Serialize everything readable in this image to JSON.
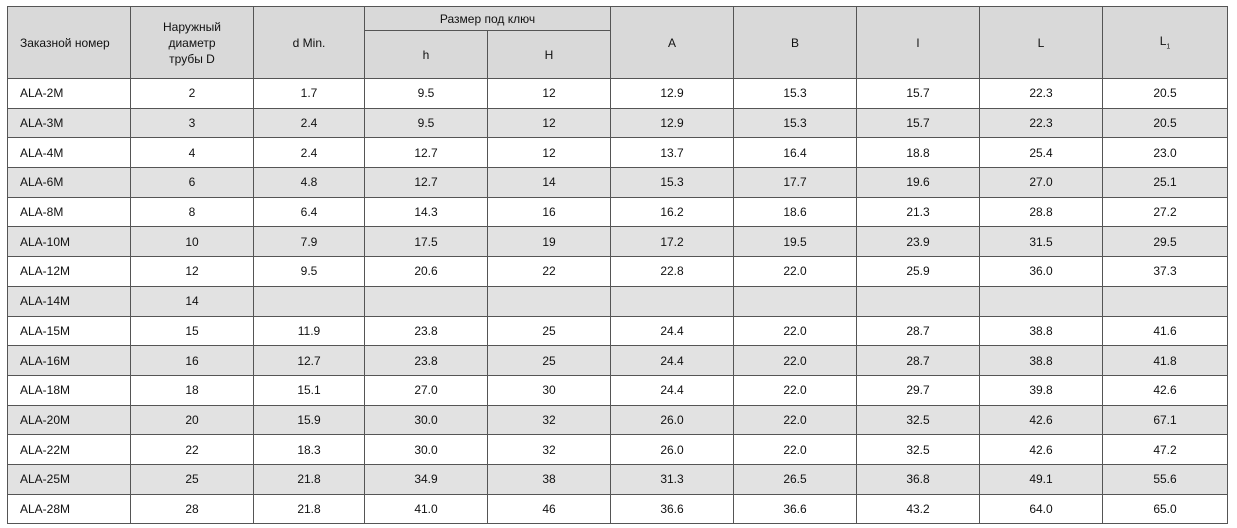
{
  "table": {
    "header": {
      "order": "Заказной номер",
      "diameter_lines": [
        "Наружный",
        "диаметр",
        "трубы D"
      ],
      "dmin": "d Min.",
      "wrench": "Размер под ключ",
      "h": "h",
      "H": "H",
      "A": "A",
      "B": "B",
      "l": "l",
      "L": "L",
      "L1": {
        "text": "L",
        "sub": "1"
      }
    },
    "rows": [
      [
        "ALA-2M",
        "2",
        "1.7",
        "9.5",
        "12",
        "12.9",
        "15.3",
        "15.7",
        "22.3",
        "20.5"
      ],
      [
        "ALA-3M",
        "3",
        "2.4",
        "9.5",
        "12",
        "12.9",
        "15.3",
        "15.7",
        "22.3",
        "20.5"
      ],
      [
        "ALA-4M",
        "4",
        "2.4",
        "12.7",
        "12",
        "13.7",
        "16.4",
        "18.8",
        "25.4",
        "23.0"
      ],
      [
        "ALA-6M",
        "6",
        "4.8",
        "12.7",
        "14",
        "15.3",
        "17.7",
        "19.6",
        "27.0",
        "25.1"
      ],
      [
        "ALA-8M",
        "8",
        "6.4",
        "14.3",
        "16",
        "16.2",
        "18.6",
        "21.3",
        "28.8",
        "27.2"
      ],
      [
        "ALA-10M",
        "10",
        "7.9",
        "17.5",
        "19",
        "17.2",
        "19.5",
        "23.9",
        "31.5",
        "29.5"
      ],
      [
        "ALA-12M",
        "12",
        "9.5",
        "20.6",
        "22",
        "22.8",
        "22.0",
        "25.9",
        "36.0",
        "37.3"
      ],
      [
        "ALA-14M",
        "14"
      ],
      [
        "ALA-15M",
        "15",
        "11.9",
        "23.8",
        "25",
        "24.4",
        "22.0",
        "28.7",
        "38.8",
        "41.6"
      ],
      [
        "ALA-16M",
        "16",
        "12.7",
        "23.8",
        "25",
        "24.4",
        "22.0",
        "28.7",
        "38.8",
        "41.8"
      ],
      [
        "ALA-18M",
        "18",
        "15.1",
        "27.0",
        "30",
        "24.4",
        "22.0",
        "29.7",
        "39.8",
        "42.6"
      ],
      [
        "ALA-20M",
        "20",
        "15.9",
        "30.0",
        "32",
        "26.0",
        "22.0",
        "32.5",
        "42.6",
        "67.1"
      ],
      [
        "ALA-22M",
        "22",
        "18.3",
        "30.0",
        "32",
        "26.0",
        "22.0",
        "32.5",
        "42.6",
        "47.2"
      ],
      [
        "ALA-25M",
        "25",
        "21.8",
        "34.9",
        "38",
        "31.3",
        "26.5",
        "36.8",
        "49.1",
        "55.6"
      ],
      [
        "ALA-28M",
        "28",
        "21.8",
        "41.0",
        "46",
        "36.6",
        "36.6",
        "43.2",
        "64.0",
        "65.0"
      ]
    ]
  }
}
